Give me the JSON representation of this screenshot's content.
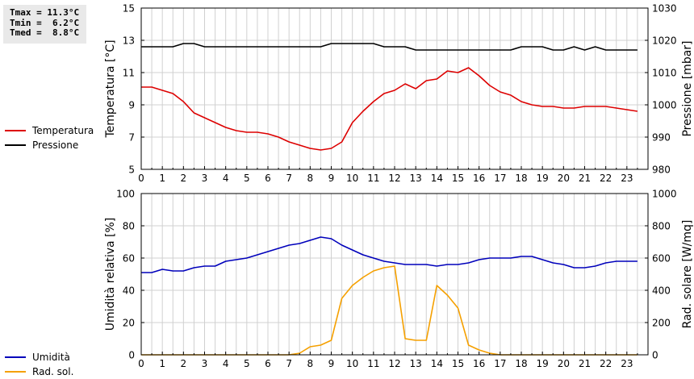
{
  "stats": {
    "tmax": "Tmax = 11.3°C",
    "tmin": "Tmin =  6.2°C",
    "tmed": "Tmed =  8.8°C"
  },
  "colors": {
    "temperature": "#dd0000",
    "pressure": "#000000",
    "humidity": "#0000bb",
    "solar": "#f5a000",
    "grid": "#d0d0d0"
  },
  "chart_data": [
    {
      "type": "line",
      "xlim": [
        0,
        24
      ],
      "x_ticks": [
        "0",
        "1",
        "2",
        "3",
        "4",
        "5",
        "6",
        "7",
        "8",
        "9",
        "10",
        "11",
        "12",
        "13",
        "14",
        "15",
        "16",
        "17",
        "18",
        "19",
        "20",
        "21",
        "22",
        "23"
      ],
      "ylabel_left": "Temperatura [°C]",
      "ylabel_right": "Pressione [mbar]",
      "ylim_left": [
        5,
        15
      ],
      "yticks_left": [
        "5",
        "7",
        "9",
        "11",
        "13",
        "15"
      ],
      "ylim_right": [
        980,
        1030
      ],
      "yticks_right": [
        "980",
        "990",
        "1000",
        "1010",
        "1020",
        "1030"
      ],
      "grid": true,
      "legend_position": "left",
      "series": [
        {
          "name": "Temperatura",
          "axis": "left",
          "color_key": "temperature",
          "x": [
            0,
            0.5,
            1,
            1.5,
            2,
            2.5,
            3,
            3.5,
            4,
            4.5,
            5,
            5.5,
            6,
            6.5,
            7,
            7.5,
            8,
            8.5,
            9,
            9.5,
            10,
            10.5,
            11,
            11.5,
            12,
            12.5,
            13,
            13.5,
            14,
            14.5,
            15,
            15.5,
            16,
            16.5,
            17,
            17.5,
            18,
            18.5,
            19,
            19.5,
            20,
            20.5,
            21,
            21.5,
            22,
            22.5,
            23,
            23.5
          ],
          "values": [
            10.1,
            10.1,
            9.9,
            9.7,
            9.2,
            8.5,
            8.2,
            7.9,
            7.6,
            7.4,
            7.3,
            7.3,
            7.2,
            7.0,
            6.7,
            6.5,
            6.3,
            6.2,
            6.3,
            6.7,
            7.9,
            8.6,
            9.2,
            9.7,
            9.9,
            10.3,
            10.0,
            10.5,
            10.6,
            11.1,
            11.0,
            11.3,
            10.8,
            10.2,
            9.8,
            9.6,
            9.2,
            9.0,
            8.9,
            8.9,
            8.8,
            8.8,
            8.9,
            8.9,
            8.9,
            8.8,
            8.7,
            8.6
          ]
        },
        {
          "name": "Pressione",
          "axis": "right",
          "color_key": "pressure",
          "x": [
            0,
            0.5,
            1,
            1.5,
            2,
            2.5,
            3,
            3.5,
            4,
            4.5,
            5,
            5.5,
            6,
            6.5,
            7,
            7.5,
            8,
            8.5,
            9,
            9.5,
            10,
            10.5,
            11,
            11.5,
            12,
            12.5,
            13,
            13.5,
            14,
            14.5,
            15,
            15.5,
            16,
            16.5,
            17,
            17.5,
            18,
            18.5,
            19,
            19.5,
            20,
            20.5,
            21,
            21.5,
            22,
            22.5,
            23,
            23.5
          ],
          "values": [
            1018,
            1018,
            1018,
            1018,
            1019,
            1019,
            1018,
            1018,
            1018,
            1018,
            1018,
            1018,
            1018,
            1018,
            1018,
            1018,
            1018,
            1018,
            1019,
            1019,
            1019,
            1019,
            1019,
            1018,
            1018,
            1018,
            1017,
            1017,
            1017,
            1017,
            1017,
            1017,
            1017,
            1017,
            1017,
            1017,
            1018,
            1018,
            1018,
            1017,
            1017,
            1018,
            1017,
            1018,
            1017,
            1017,
            1017,
            1017
          ]
        }
      ]
    },
    {
      "type": "line",
      "xlim": [
        0,
        24
      ],
      "x_ticks": [
        "0",
        "1",
        "2",
        "3",
        "4",
        "5",
        "6",
        "7",
        "8",
        "9",
        "10",
        "11",
        "12",
        "13",
        "14",
        "15",
        "16",
        "17",
        "18",
        "19",
        "20",
        "21",
        "22",
        "23"
      ],
      "ylabel_left": "Umidità relativa [%]",
      "ylabel_right": "Rad. solare [W/mq]",
      "ylim_left": [
        0,
        100
      ],
      "yticks_left": [
        "0",
        "20",
        "40",
        "60",
        "80",
        "100"
      ],
      "ylim_right": [
        0,
        1000
      ],
      "yticks_right": [
        "0",
        "200",
        "400",
        "600",
        "800",
        "1000"
      ],
      "grid": true,
      "legend_position": "left",
      "series": [
        {
          "name": "Umidità",
          "axis": "left",
          "color_key": "humidity",
          "x": [
            0,
            0.5,
            1,
            1.5,
            2,
            2.5,
            3,
            3.5,
            4,
            4.5,
            5,
            5.5,
            6,
            6.5,
            7,
            7.5,
            8,
            8.5,
            9,
            9.5,
            10,
            10.5,
            11,
            11.5,
            12,
            12.5,
            13,
            13.5,
            14,
            14.5,
            15,
            15.5,
            16,
            16.5,
            17,
            17.5,
            18,
            18.5,
            19,
            19.5,
            20,
            20.5,
            21,
            21.5,
            22,
            22.5,
            23,
            23.5
          ],
          "values": [
            51,
            51,
            53,
            52,
            52,
            54,
            55,
            55,
            58,
            59,
            60,
            62,
            64,
            66,
            68,
            69,
            71,
            73,
            72,
            68,
            65,
            62,
            60,
            58,
            57,
            56,
            56,
            56,
            55,
            56,
            56,
            57,
            59,
            60,
            60,
            60,
            61,
            61,
            59,
            57,
            56,
            54,
            54,
            55,
            57,
            58,
            58,
            58
          ]
        },
        {
          "name": "Rad. sol.",
          "axis": "right",
          "color_key": "solar",
          "x": [
            0,
            0.5,
            1,
            1.5,
            2,
            2.5,
            3,
            3.5,
            4,
            4.5,
            5,
            5.5,
            6,
            6.5,
            7,
            7.5,
            8,
            8.5,
            9,
            9.5,
            10,
            10.5,
            11,
            11.5,
            12,
            12.5,
            13,
            13.5,
            14,
            14.5,
            15,
            15.5,
            16,
            16.5,
            17,
            17.5,
            18,
            18.5,
            19,
            19.5,
            20,
            20.5,
            21,
            21.5,
            22,
            22.5,
            23,
            23.5
          ],
          "values": [
            0,
            0,
            0,
            0,
            0,
            0,
            0,
            0,
            0,
            0,
            0,
            0,
            0,
            0,
            0,
            10,
            50,
            60,
            90,
            350,
            430,
            480,
            520,
            540,
            550,
            100,
            90,
            90,
            430,
            370,
            290,
            60,
            30,
            10,
            0,
            0,
            0,
            0,
            0,
            0,
            0,
            0,
            0,
            0,
            0,
            0,
            0,
            0
          ]
        }
      ]
    }
  ]
}
